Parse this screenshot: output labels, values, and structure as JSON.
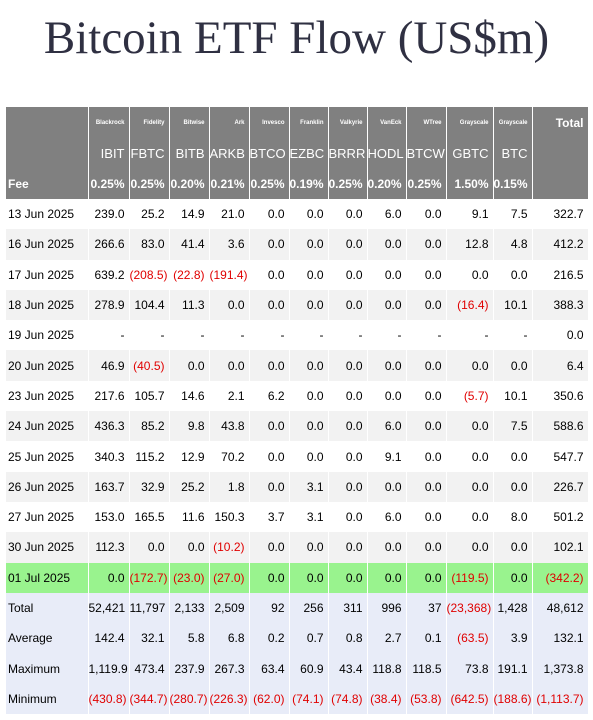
{
  "title": "Bitcoin ETF Flow (US$m)",
  "header": {
    "issuers": [
      "Blackrock",
      "Fidelity",
      "Bitwise",
      "Ark",
      "Invesco",
      "Franklin",
      "Valkyrie",
      "VanEck",
      "WTree",
      "Grayscale",
      "Grayscale"
    ],
    "total_label": "Total",
    "tickers": [
      "IBIT",
      "FBTC",
      "BITB",
      "ARKB",
      "BTCO",
      "EZBC",
      "BRRR",
      "HODL",
      "BTCW",
      "GBTC",
      "BTC"
    ],
    "fee_label": "Fee",
    "fees": [
      "0.25%",
      "0.25%",
      "0.20%",
      "0.21%",
      "0.25%",
      "0.19%",
      "0.25%",
      "0.20%",
      "0.25%",
      "1.50%",
      "0.15%"
    ]
  },
  "rows": [
    {
      "date": "13 Jun 2025",
      "values": [
        "239.0",
        "25.2",
        "14.9",
        "21.0",
        "0.0",
        "0.0",
        "0.0",
        "6.0",
        "0.0",
        "9.1",
        "7.5",
        "322.7"
      ]
    },
    {
      "date": "16 Jun 2025",
      "values": [
        "266.6",
        "83.0",
        "41.4",
        "3.6",
        "0.0",
        "0.0",
        "0.0",
        "0.0",
        "0.0",
        "12.8",
        "4.8",
        "412.2"
      ]
    },
    {
      "date": "17 Jun 2025",
      "values": [
        "639.2",
        "(208.5)",
        "(22.8)",
        "(191.4)",
        "0.0",
        "0.0",
        "0.0",
        "0.0",
        "0.0",
        "0.0",
        "0.0",
        "216.5"
      ]
    },
    {
      "date": "18 Jun 2025",
      "values": [
        "278.9",
        "104.4",
        "11.3",
        "0.0",
        "0.0",
        "0.0",
        "0.0",
        "0.0",
        "0.0",
        "(16.4)",
        "10.1",
        "388.3"
      ]
    },
    {
      "date": "19 Jun 2025",
      "values": [
        "-",
        "-",
        "-",
        "-",
        "-",
        "-",
        "-",
        "-",
        "-",
        "-",
        "-",
        "0.0"
      ]
    },
    {
      "date": "20 Jun 2025",
      "values": [
        "46.9",
        "(40.5)",
        "0.0",
        "0.0",
        "0.0",
        "0.0",
        "0.0",
        "0.0",
        "0.0",
        "0.0",
        "0.0",
        "6.4"
      ]
    },
    {
      "date": "23 Jun 2025",
      "values": [
        "217.6",
        "105.7",
        "14.6",
        "2.1",
        "6.2",
        "0.0",
        "0.0",
        "0.0",
        "0.0",
        "(5.7)",
        "10.1",
        "350.6"
      ]
    },
    {
      "date": "24 Jun 2025",
      "values": [
        "436.3",
        "85.2",
        "9.8",
        "43.8",
        "0.0",
        "0.0",
        "0.0",
        "6.0",
        "0.0",
        "0.0",
        "7.5",
        "588.6"
      ]
    },
    {
      "date": "25 Jun 2025",
      "values": [
        "340.3",
        "115.2",
        "12.9",
        "70.2",
        "0.0",
        "0.0",
        "0.0",
        "9.1",
        "0.0",
        "0.0",
        "0.0",
        "547.7"
      ]
    },
    {
      "date": "26 Jun 2025",
      "values": [
        "163.7",
        "32.9",
        "25.2",
        "1.8",
        "0.0",
        "3.1",
        "0.0",
        "0.0",
        "0.0",
        "0.0",
        "0.0",
        "226.7"
      ]
    },
    {
      "date": "27 Jun 2025",
      "values": [
        "153.0",
        "165.5",
        "11.6",
        "150.3",
        "3.7",
        "3.1",
        "0.0",
        "6.0",
        "0.0",
        "0.0",
        "8.0",
        "501.2"
      ]
    },
    {
      "date": "30 Jun 2025",
      "values": [
        "112.3",
        "0.0",
        "0.0",
        "(10.2)",
        "0.0",
        "0.0",
        "0.0",
        "0.0",
        "0.0",
        "0.0",
        "0.0",
        "102.1"
      ]
    },
    {
      "date": "01 Jul 2025",
      "values": [
        "0.0",
        "(172.7)",
        "(23.0)",
        "(27.0)",
        "0.0",
        "0.0",
        "0.0",
        "0.0",
        "0.0",
        "(119.5)",
        "0.0",
        "(342.2)"
      ]
    }
  ],
  "summary": [
    {
      "label": "Total",
      "values": [
        "52,421",
        "11,797",
        "2,133",
        "2,509",
        "92",
        "256",
        "311",
        "996",
        "37",
        "(23,368)",
        "1,428",
        "48,612"
      ]
    },
    {
      "label": "Average",
      "values": [
        "142.4",
        "32.1",
        "5.8",
        "6.8",
        "0.2",
        "0.7",
        "0.8",
        "2.7",
        "0.1",
        "(63.5)",
        "3.9",
        "132.1"
      ]
    },
    {
      "label": "Maximum",
      "values": [
        "1,119.9",
        "473.4",
        "237.9",
        "267.3",
        "63.4",
        "60.9",
        "43.4",
        "118.8",
        "118.5",
        "73.8",
        "191.1",
        "1,373.8"
      ]
    },
    {
      "label": "Minimum",
      "values": [
        "(430.8)",
        "(344.7)",
        "(280.7)",
        "(226.3)",
        "(62.0)",
        "(74.1)",
        "(74.8)",
        "(38.4)",
        "(53.8)",
        "(642.5)",
        "(188.6)",
        "(1,113.7)"
      ]
    }
  ]
}
